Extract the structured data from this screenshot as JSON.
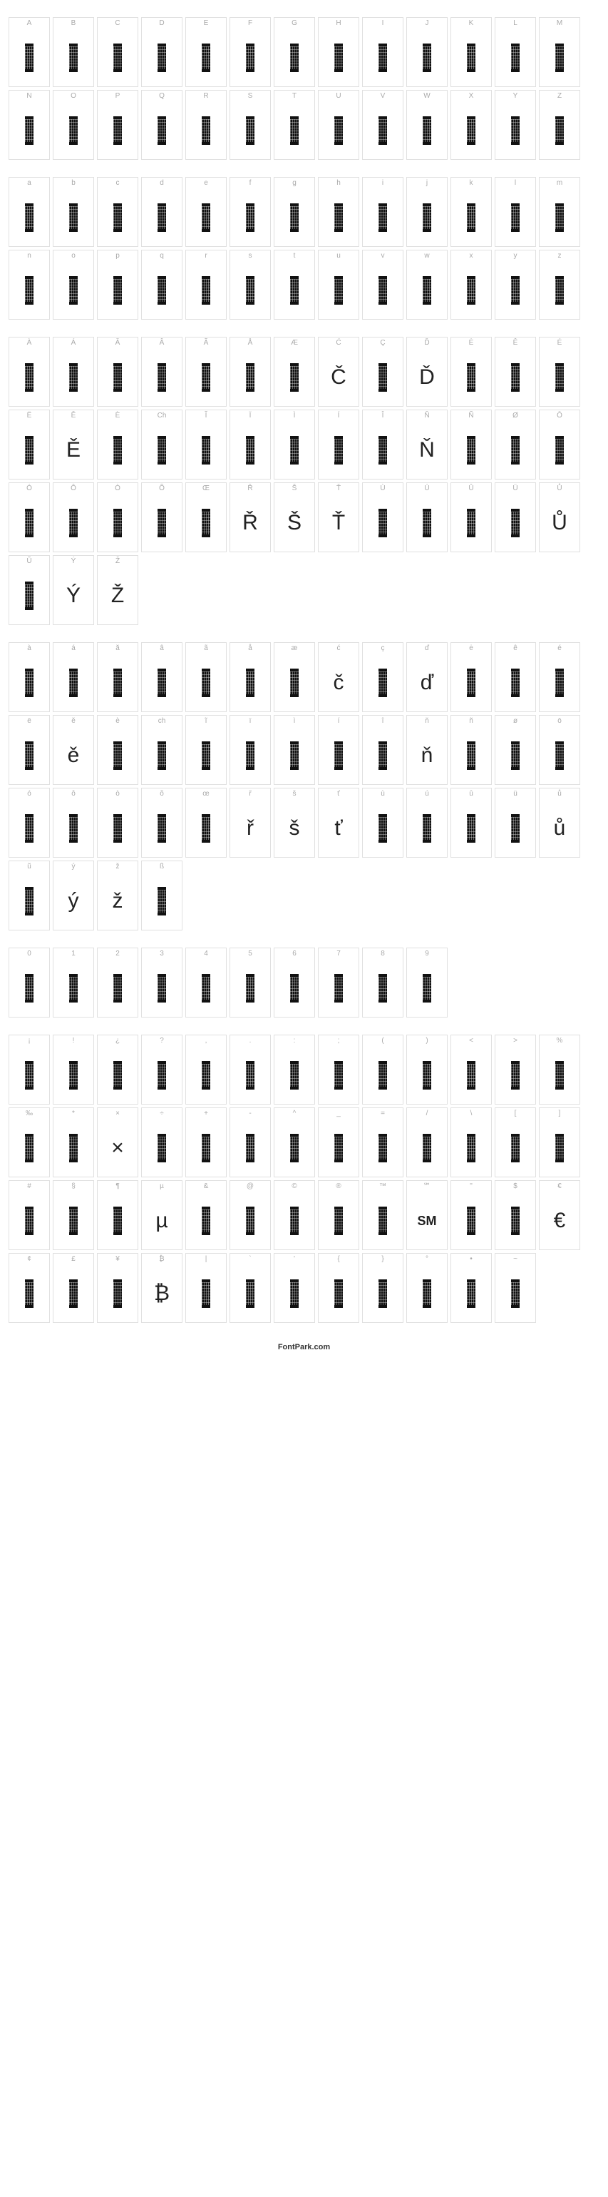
{
  "footer": "FontPark.com",
  "styles": {
    "block": {
      "width": 12,
      "height": 40,
      "fill": "#111111"
    },
    "glyphFontSize": 30,
    "labelColor": "#aaaaaa",
    "cellBorderColor": "#e0e0e0",
    "background": "#ffffff"
  },
  "sections": [
    {
      "name": "uppercase",
      "cols": 13,
      "rows": [
        [
          {
            "label": "A",
            "type": "block"
          },
          {
            "label": "B",
            "type": "block"
          },
          {
            "label": "C",
            "type": "block"
          },
          {
            "label": "D",
            "type": "block"
          },
          {
            "label": "E",
            "type": "block"
          },
          {
            "label": "F",
            "type": "block"
          },
          {
            "label": "G",
            "type": "block"
          },
          {
            "label": "H",
            "type": "block"
          },
          {
            "label": "I",
            "type": "block"
          },
          {
            "label": "J",
            "type": "block"
          },
          {
            "label": "K",
            "type": "block"
          },
          {
            "label": "L",
            "type": "block"
          },
          {
            "label": "M",
            "type": "block"
          }
        ],
        [
          {
            "label": "N",
            "type": "block"
          },
          {
            "label": "O",
            "type": "block"
          },
          {
            "label": "P",
            "type": "block"
          },
          {
            "label": "Q",
            "type": "block"
          },
          {
            "label": "R",
            "type": "block"
          },
          {
            "label": "S",
            "type": "block"
          },
          {
            "label": "T",
            "type": "block"
          },
          {
            "label": "U",
            "type": "block"
          },
          {
            "label": "V",
            "type": "block"
          },
          {
            "label": "W",
            "type": "block"
          },
          {
            "label": "X",
            "type": "block"
          },
          {
            "label": "Y",
            "type": "block"
          },
          {
            "label": "Z",
            "type": "block"
          }
        ]
      ]
    },
    {
      "name": "lowercase",
      "cols": 13,
      "rows": [
        [
          {
            "label": "a",
            "type": "block"
          },
          {
            "label": "b",
            "type": "block"
          },
          {
            "label": "c",
            "type": "block"
          },
          {
            "label": "d",
            "type": "block"
          },
          {
            "label": "e",
            "type": "block"
          },
          {
            "label": "f",
            "type": "block"
          },
          {
            "label": "g",
            "type": "block"
          },
          {
            "label": "h",
            "type": "block"
          },
          {
            "label": "i",
            "type": "block"
          },
          {
            "label": "j",
            "type": "block"
          },
          {
            "label": "k",
            "type": "block"
          },
          {
            "label": "l",
            "type": "block"
          },
          {
            "label": "m",
            "type": "block"
          }
        ],
        [
          {
            "label": "n",
            "type": "block"
          },
          {
            "label": "o",
            "type": "block"
          },
          {
            "label": "p",
            "type": "block"
          },
          {
            "label": "q",
            "type": "block"
          },
          {
            "label": "r",
            "type": "block"
          },
          {
            "label": "s",
            "type": "block"
          },
          {
            "label": "t",
            "type": "block"
          },
          {
            "label": "u",
            "type": "block"
          },
          {
            "label": "v",
            "type": "block"
          },
          {
            "label": "w",
            "type": "block"
          },
          {
            "label": "x",
            "type": "block"
          },
          {
            "label": "y",
            "type": "block"
          },
          {
            "label": "z",
            "type": "block"
          }
        ]
      ]
    },
    {
      "name": "accented-upper",
      "cols": 13,
      "rows": [
        [
          {
            "label": "À",
            "type": "block"
          },
          {
            "label": "Á",
            "type": "block"
          },
          {
            "label": "Ă",
            "type": "block"
          },
          {
            "label": "Â",
            "type": "block"
          },
          {
            "label": "Ã",
            "type": "block"
          },
          {
            "label": "Å",
            "type": "block"
          },
          {
            "label": "Æ",
            "type": "block"
          },
          {
            "label": "Ć",
            "type": "text",
            "glyph": "Č"
          },
          {
            "label": "Ç",
            "type": "block"
          },
          {
            "label": "Ď",
            "type": "text",
            "glyph": "Ď"
          },
          {
            "label": "Ė",
            "type": "block"
          },
          {
            "label": "Ê",
            "type": "block"
          },
          {
            "label": "É",
            "type": "block"
          }
        ],
        [
          {
            "label": "Ë",
            "type": "block"
          },
          {
            "label": "Ě",
            "type": "text",
            "glyph": "Ě"
          },
          {
            "label": "È",
            "type": "block"
          },
          {
            "label": "Ch",
            "type": "block"
          },
          {
            "label": "Ĩ",
            "type": "block"
          },
          {
            "label": "Ï",
            "type": "block"
          },
          {
            "label": "Ì",
            "type": "block"
          },
          {
            "label": "Í",
            "type": "block"
          },
          {
            "label": "Î",
            "type": "block"
          },
          {
            "label": "Ň",
            "type": "text",
            "glyph": "Ň"
          },
          {
            "label": "Ñ",
            "type": "block"
          },
          {
            "label": "Ø",
            "type": "block"
          },
          {
            "label": "Ō",
            "type": "block"
          }
        ],
        [
          {
            "label": "Ó",
            "type": "block"
          },
          {
            "label": "Ô",
            "type": "block"
          },
          {
            "label": "Ò",
            "type": "block"
          },
          {
            "label": "Õ",
            "type": "block"
          },
          {
            "label": "Œ",
            "type": "block"
          },
          {
            "label": "Ř",
            "type": "text",
            "glyph": "Ř"
          },
          {
            "label": "Š",
            "type": "text",
            "glyph": "Š"
          },
          {
            "label": "Ť",
            "type": "text",
            "glyph": "Ť"
          },
          {
            "label": "Ù",
            "type": "block"
          },
          {
            "label": "Ú",
            "type": "block"
          },
          {
            "label": "Û",
            "type": "block"
          },
          {
            "label": "Ü",
            "type": "block"
          },
          {
            "label": "Ů",
            "type": "text",
            "glyph": "Ů"
          }
        ],
        [
          {
            "label": "Ũ",
            "type": "block"
          },
          {
            "label": "Ý",
            "type": "text",
            "glyph": "Ý"
          },
          {
            "label": "Ž",
            "type": "text",
            "glyph": "Ž"
          },
          {
            "type": "empty"
          },
          {
            "type": "empty"
          },
          {
            "type": "empty"
          },
          {
            "type": "empty"
          },
          {
            "type": "empty"
          },
          {
            "type": "empty"
          },
          {
            "type": "empty"
          },
          {
            "type": "empty"
          },
          {
            "type": "empty"
          },
          {
            "type": "empty"
          }
        ]
      ]
    },
    {
      "name": "accented-lower",
      "cols": 13,
      "rows": [
        [
          {
            "label": "à",
            "type": "block"
          },
          {
            "label": "á",
            "type": "block"
          },
          {
            "label": "ă",
            "type": "block"
          },
          {
            "label": "â",
            "type": "block"
          },
          {
            "label": "ã",
            "type": "block"
          },
          {
            "label": "å",
            "type": "block"
          },
          {
            "label": "æ",
            "type": "block"
          },
          {
            "label": "ć",
            "type": "text",
            "glyph": "č"
          },
          {
            "label": "ç",
            "type": "block"
          },
          {
            "label": "ď",
            "type": "text",
            "glyph": "ď"
          },
          {
            "label": "ė",
            "type": "block"
          },
          {
            "label": "ê",
            "type": "block"
          },
          {
            "label": "é",
            "type": "block"
          }
        ],
        [
          {
            "label": "ë",
            "type": "block"
          },
          {
            "label": "ě",
            "type": "text",
            "glyph": "ě"
          },
          {
            "label": "è",
            "type": "block"
          },
          {
            "label": "ch",
            "type": "block"
          },
          {
            "label": "ĩ",
            "type": "block"
          },
          {
            "label": "ï",
            "type": "block"
          },
          {
            "label": "ì",
            "type": "block"
          },
          {
            "label": "í",
            "type": "block"
          },
          {
            "label": "î",
            "type": "block"
          },
          {
            "label": "ň",
            "type": "text",
            "glyph": "ň"
          },
          {
            "label": "ñ",
            "type": "block"
          },
          {
            "label": "ø",
            "type": "block"
          },
          {
            "label": "ō",
            "type": "block"
          }
        ],
        [
          {
            "label": "ó",
            "type": "block"
          },
          {
            "label": "ô",
            "type": "block"
          },
          {
            "label": "ò",
            "type": "block"
          },
          {
            "label": "õ",
            "type": "block"
          },
          {
            "label": "œ",
            "type": "block"
          },
          {
            "label": "ř",
            "type": "text",
            "glyph": "ř"
          },
          {
            "label": "š",
            "type": "text",
            "glyph": "š"
          },
          {
            "label": "ť",
            "type": "text",
            "glyph": "ť"
          },
          {
            "label": "ù",
            "type": "block"
          },
          {
            "label": "ú",
            "type": "block"
          },
          {
            "label": "û",
            "type": "block"
          },
          {
            "label": "ü",
            "type": "block"
          },
          {
            "label": "ů",
            "type": "text",
            "glyph": "ů"
          }
        ],
        [
          {
            "label": "ũ",
            "type": "block"
          },
          {
            "label": "ý",
            "type": "text",
            "glyph": "ý"
          },
          {
            "label": "ž",
            "type": "text",
            "glyph": "ž"
          },
          {
            "label": "ß",
            "type": "block"
          },
          {
            "type": "empty"
          },
          {
            "type": "empty"
          },
          {
            "type": "empty"
          },
          {
            "type": "empty"
          },
          {
            "type": "empty"
          },
          {
            "type": "empty"
          },
          {
            "type": "empty"
          },
          {
            "type": "empty"
          },
          {
            "type": "empty"
          }
        ]
      ]
    },
    {
      "name": "digits",
      "cols": 13,
      "rows": [
        [
          {
            "label": "0",
            "type": "block"
          },
          {
            "label": "1",
            "type": "block"
          },
          {
            "label": "2",
            "type": "block"
          },
          {
            "label": "3",
            "type": "block"
          },
          {
            "label": "4",
            "type": "block"
          },
          {
            "label": "5",
            "type": "block"
          },
          {
            "label": "6",
            "type": "block"
          },
          {
            "label": "7",
            "type": "block"
          },
          {
            "label": "8",
            "type": "block"
          },
          {
            "label": "9",
            "type": "block"
          },
          {
            "type": "empty"
          },
          {
            "type": "empty"
          },
          {
            "type": "empty"
          }
        ]
      ]
    },
    {
      "name": "symbols",
      "cols": 13,
      "rows": [
        [
          {
            "label": "¡",
            "type": "block"
          },
          {
            "label": "!",
            "type": "block"
          },
          {
            "label": "¿",
            "type": "block"
          },
          {
            "label": "?",
            "type": "block"
          },
          {
            "label": ",",
            "type": "block"
          },
          {
            "label": ".",
            "type": "block"
          },
          {
            "label": ":",
            "type": "block"
          },
          {
            "label": ";",
            "type": "block"
          },
          {
            "label": "(",
            "type": "block"
          },
          {
            "label": ")",
            "type": "block"
          },
          {
            "label": "<",
            "type": "block"
          },
          {
            "label": ">",
            "type": "block"
          },
          {
            "label": "%",
            "type": "block"
          }
        ],
        [
          {
            "label": "‰",
            "type": "block"
          },
          {
            "label": "*",
            "type": "block"
          },
          {
            "label": "×",
            "type": "text",
            "glyph": "×"
          },
          {
            "label": "÷",
            "type": "block"
          },
          {
            "label": "+",
            "type": "block"
          },
          {
            "label": "-",
            "type": "block"
          },
          {
            "label": "^",
            "type": "block"
          },
          {
            "label": "_",
            "type": "block"
          },
          {
            "label": "=",
            "type": "block"
          },
          {
            "label": "/",
            "type": "block"
          },
          {
            "label": "\\",
            "type": "block"
          },
          {
            "label": "[",
            "type": "block"
          },
          {
            "label": "]",
            "type": "block"
          }
        ],
        [
          {
            "label": "#",
            "type": "block"
          },
          {
            "label": "§",
            "type": "block"
          },
          {
            "label": "¶",
            "type": "block"
          },
          {
            "label": "µ",
            "type": "text",
            "glyph": "µ"
          },
          {
            "label": "&",
            "type": "block"
          },
          {
            "label": "@",
            "type": "block"
          },
          {
            "label": "©",
            "type": "block"
          },
          {
            "label": "®",
            "type": "block"
          },
          {
            "label": "™",
            "type": "block"
          },
          {
            "label": "℠",
            "type": "text",
            "glyph": "SM"
          },
          {
            "label": "\"",
            "type": "block"
          },
          {
            "label": "$",
            "type": "block"
          },
          {
            "label": "€",
            "type": "text",
            "glyph": "€"
          }
        ],
        [
          {
            "label": "¢",
            "type": "block"
          },
          {
            "label": "£",
            "type": "block"
          },
          {
            "label": "¥",
            "type": "block"
          },
          {
            "label": "₿",
            "type": "text",
            "glyph": "₿"
          },
          {
            "label": "|",
            "type": "block"
          },
          {
            "label": "`",
            "type": "block"
          },
          {
            "label": "'",
            "type": "block"
          },
          {
            "label": "{",
            "type": "block"
          },
          {
            "label": "}",
            "type": "block"
          },
          {
            "label": "°",
            "type": "block"
          },
          {
            "label": "•",
            "type": "block"
          },
          {
            "label": "~",
            "type": "block"
          },
          {
            "type": "empty"
          }
        ]
      ]
    }
  ]
}
